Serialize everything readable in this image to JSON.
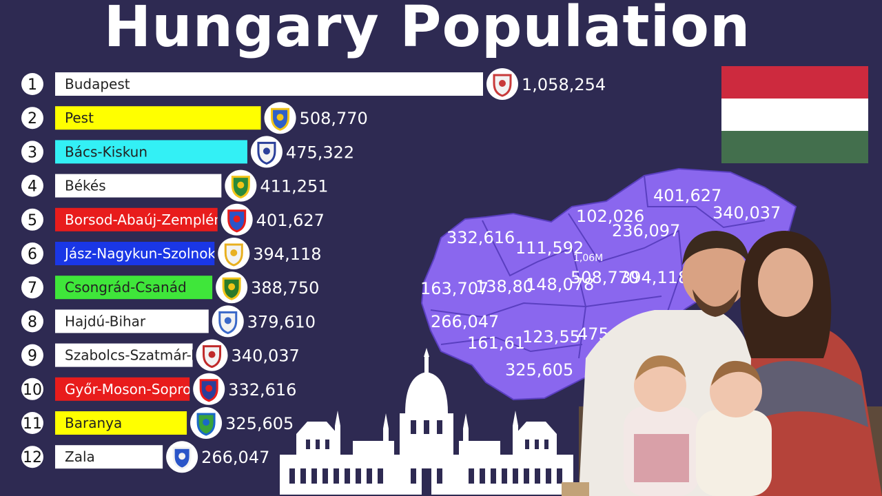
{
  "title": "Hungary Population",
  "colors": {
    "background": "#2e2a52",
    "map_fill": "#8a67ee",
    "map_border": "#5a3fc0"
  },
  "flag": {
    "name": "hungary-flag-icon",
    "stripes": [
      "#cd2a3e",
      "#ffffff",
      "#436f4d"
    ]
  },
  "chart_data": {
    "type": "bar",
    "orientation": "horizontal",
    "xlim": [
      0,
      1058254
    ],
    "categories": [
      "Budapest",
      "Pest",
      "Bács-Kiskun",
      "Békés",
      "Borsod-Abaúj-Zemplén",
      "Jász-Nagykun-Szolnok",
      "Csongrád-Csanád",
      "Hajdú-Bihar",
      "Szabolcs-Szatmár-Bereg",
      "Győr-Moson-Sopron",
      "Baranya",
      "Zala"
    ],
    "ranks": [
      1,
      2,
      3,
      4,
      5,
      6,
      7,
      8,
      9,
      10,
      11,
      12
    ],
    "values": [
      1058254,
      508770,
      475322,
      411251,
      401627,
      394118,
      388750,
      379610,
      340037,
      332616,
      325605,
      266047
    ],
    "value_labels": [
      "1,058,254",
      "508,770",
      "475,322",
      "411,251",
      "401,627",
      "394,118",
      "388,750",
      "379,610",
      "340,037",
      "332,616",
      "325,605",
      "266,047"
    ],
    "bar_colors": [
      "#ffffff",
      "#ffff00",
      "#33f0f5",
      "#ffffff",
      "#e81c1c",
      "#1a37e6",
      "#3fe63a",
      "#ffffff",
      "#ffffff",
      "#e81c1c",
      "#ffff00",
      "#ffffff"
    ],
    "label_colors": [
      "#222222",
      "#222222",
      "#222222",
      "#222222",
      "#ffffff",
      "#ffffff",
      "#222222",
      "#222222",
      "#222222",
      "#ffffff",
      "#222222",
      "#222222"
    ],
    "emblem_colors": [
      [
        "#f2f2f2",
        "#c83a3a"
      ],
      [
        "#2f5fc8",
        "#f2c418"
      ],
      [
        "#f2f2f2",
        "#2a3f9a"
      ],
      [
        "#2a8a3a",
        "#f2c418"
      ],
      [
        "#2a55c8",
        "#e81c1c"
      ],
      [
        "#f2f2f2",
        "#e8b020"
      ],
      [
        "#2a7a2a",
        "#f2c418"
      ],
      [
        "#f2f2f2",
        "#3a68c8"
      ],
      [
        "#f2f2f2",
        "#c02a2a"
      ],
      [
        "#2a3f9a",
        "#e81c1c"
      ],
      [
        "#3aa33a",
        "#1a68c8"
      ],
      [
        "#2a55c8",
        "#f2f2f2"
      ]
    ]
  },
  "map_labels": [
    {
      "text": "401,627",
      "region": "borsod"
    },
    {
      "text": "340,037",
      "region": "szabolcs"
    },
    {
      "text": "102,026",
      "region": "nograd"
    },
    {
      "text": "236,097",
      "region": "heves"
    },
    {
      "text": "332,616",
      "region": "gyor"
    },
    {
      "text": "111,592",
      "region": "komarom"
    },
    {
      "text": "1,06M",
      "region": "budapest"
    },
    {
      "text": "508,770",
      "region": "pest"
    },
    {
      "text": "394,118",
      "region": "jasz"
    },
    {
      "text": "163,707",
      "region": "vas"
    },
    {
      "text": "138,80",
      "region": "veszprem"
    },
    {
      "text": "148,078",
      "region": "fejer"
    },
    {
      "text": "266,047",
      "region": "zala"
    },
    {
      "text": "161,61",
      "region": "somogy"
    },
    {
      "text": "123,55",
      "region": "tolna"
    },
    {
      "text": "475,3",
      "region": "bacs"
    },
    {
      "text": "325,605",
      "region": "baranya"
    }
  ]
}
